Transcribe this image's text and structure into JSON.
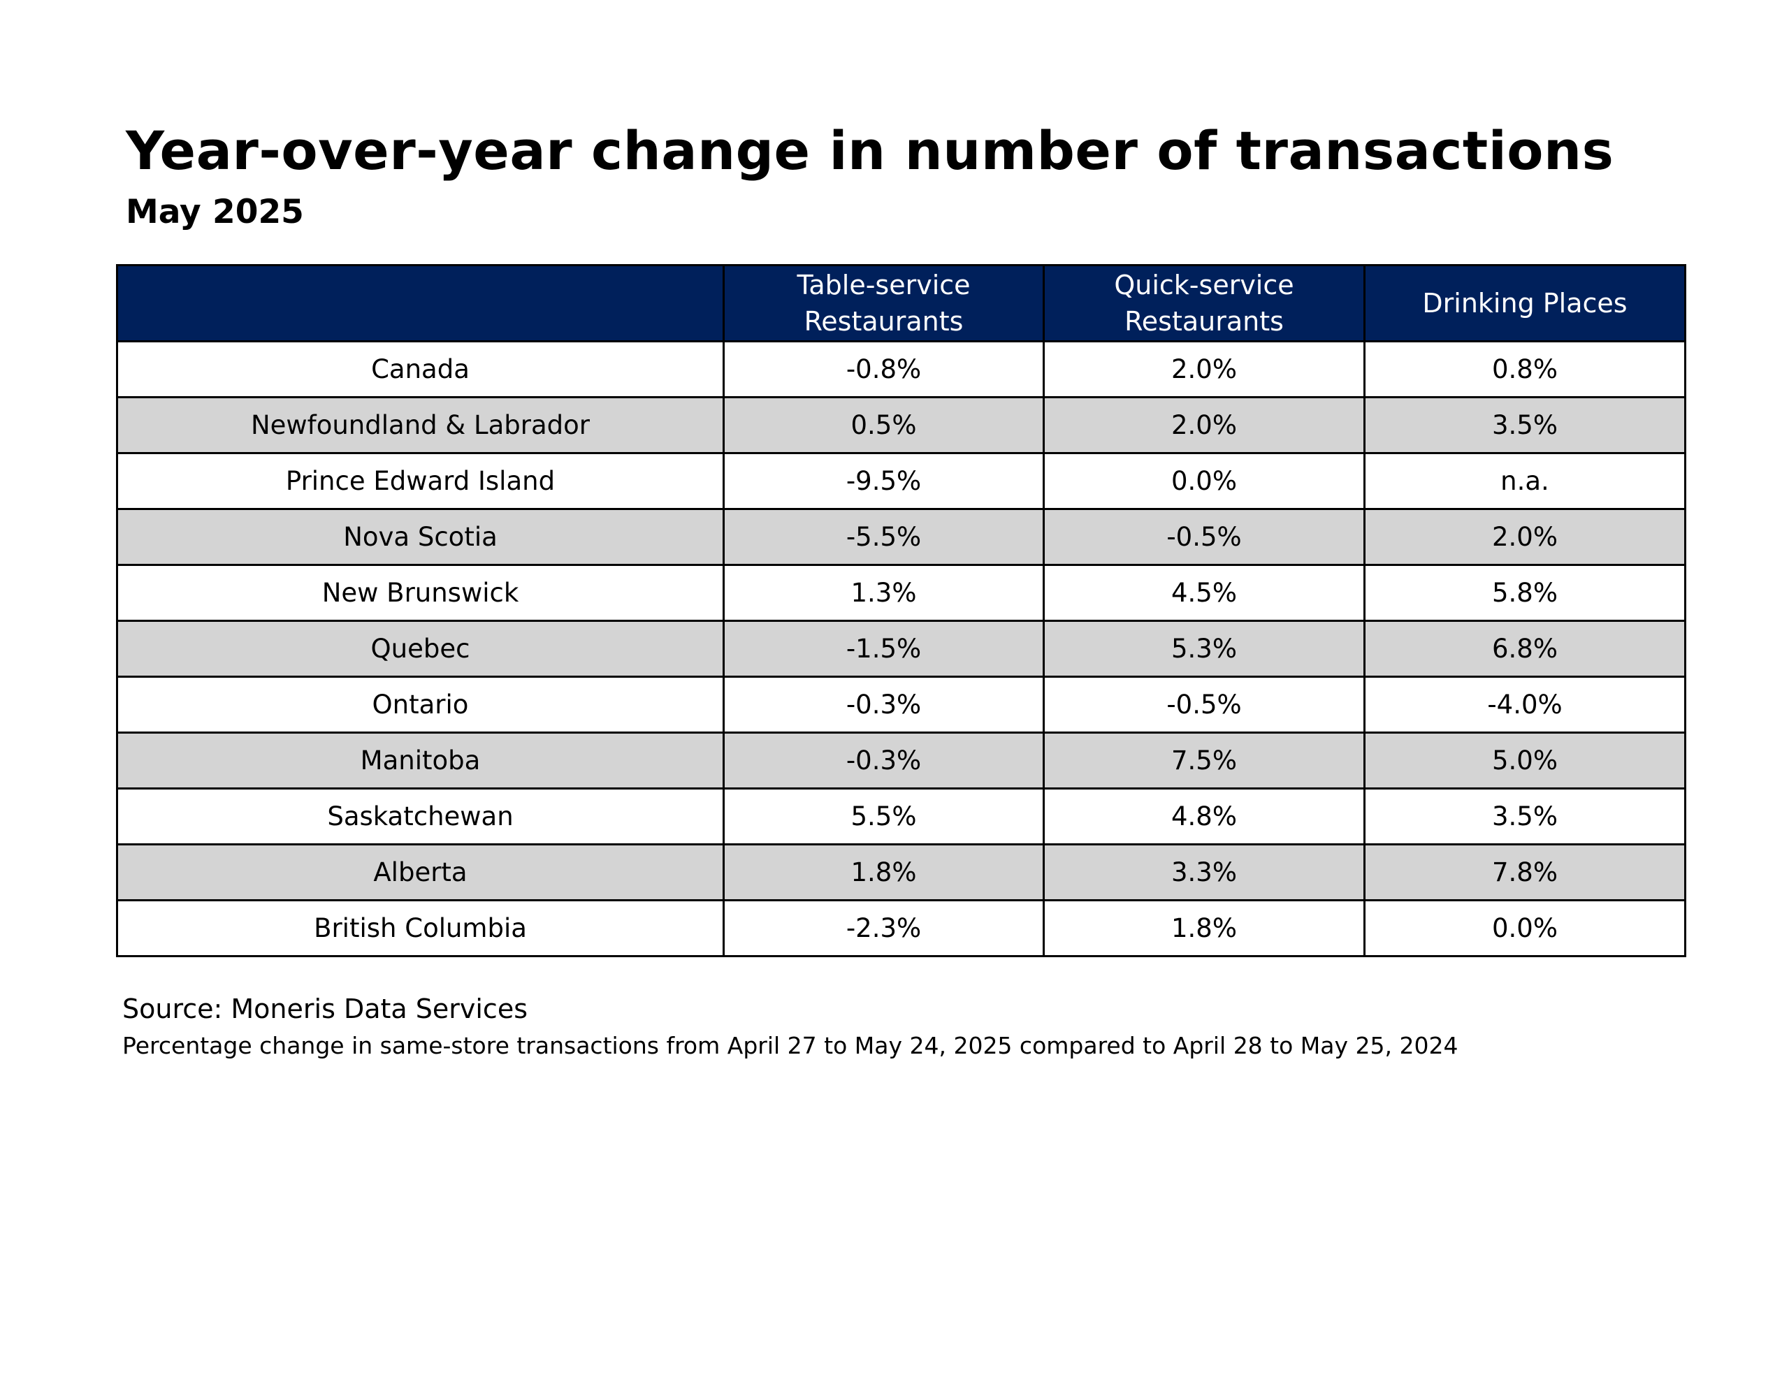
{
  "chart_data": {
    "type": "table",
    "title": "Year-over-year change in number of transactions",
    "subtitle": "May 2025",
    "columns": [
      "",
      "Table-service Restaurants",
      "Quick-service Restaurants",
      "Drinking Places"
    ],
    "column_header_lines": [
      [],
      [
        "Table-service",
        "Restaurants"
      ],
      [
        "Quick-service",
        "Restaurants"
      ],
      [
        "Drinking Places"
      ]
    ],
    "rows": [
      {
        "region": "Canada",
        "values": [
          "-0.8%",
          "2.0%",
          "0.8%"
        ]
      },
      {
        "region": "Newfoundland & Labrador",
        "values": [
          "0.5%",
          "2.0%",
          "3.5%"
        ]
      },
      {
        "region": "Prince Edward Island",
        "values": [
          "-9.5%",
          "0.0%",
          "n.a."
        ]
      },
      {
        "region": "Nova Scotia",
        "values": [
          "-5.5%",
          "-0.5%",
          "2.0%"
        ]
      },
      {
        "region": "New Brunswick",
        "values": [
          "1.3%",
          "4.5%",
          "5.8%"
        ]
      },
      {
        "region": "Quebec",
        "values": [
          "-1.5%",
          "5.3%",
          "6.8%"
        ]
      },
      {
        "region": "Ontario",
        "values": [
          "-0.3%",
          "-0.5%",
          "-4.0%"
        ]
      },
      {
        "region": "Manitoba",
        "values": [
          "-0.3%",
          "7.5%",
          "5.0%"
        ]
      },
      {
        "region": "Saskatchewan",
        "values": [
          "5.5%",
          "4.8%",
          "3.5%"
        ]
      },
      {
        "region": "Alberta",
        "values": [
          "1.8%",
          "3.3%",
          "7.8%"
        ]
      },
      {
        "region": "British Columbia",
        "values": [
          "-2.3%",
          "1.8%",
          "0.0%"
        ]
      }
    ],
    "source": "Source: Moneris Data Services",
    "note": "Percentage change in same-store transactions from April 27 to May 24, 2025 compared to April 28 to May 25, 2024"
  },
  "colors": {
    "header_background": "#00205b",
    "header_text": "#ffffff",
    "row_odd_background": "#ffffff",
    "row_even_background": "#d4d4d4",
    "border": "#000000"
  }
}
